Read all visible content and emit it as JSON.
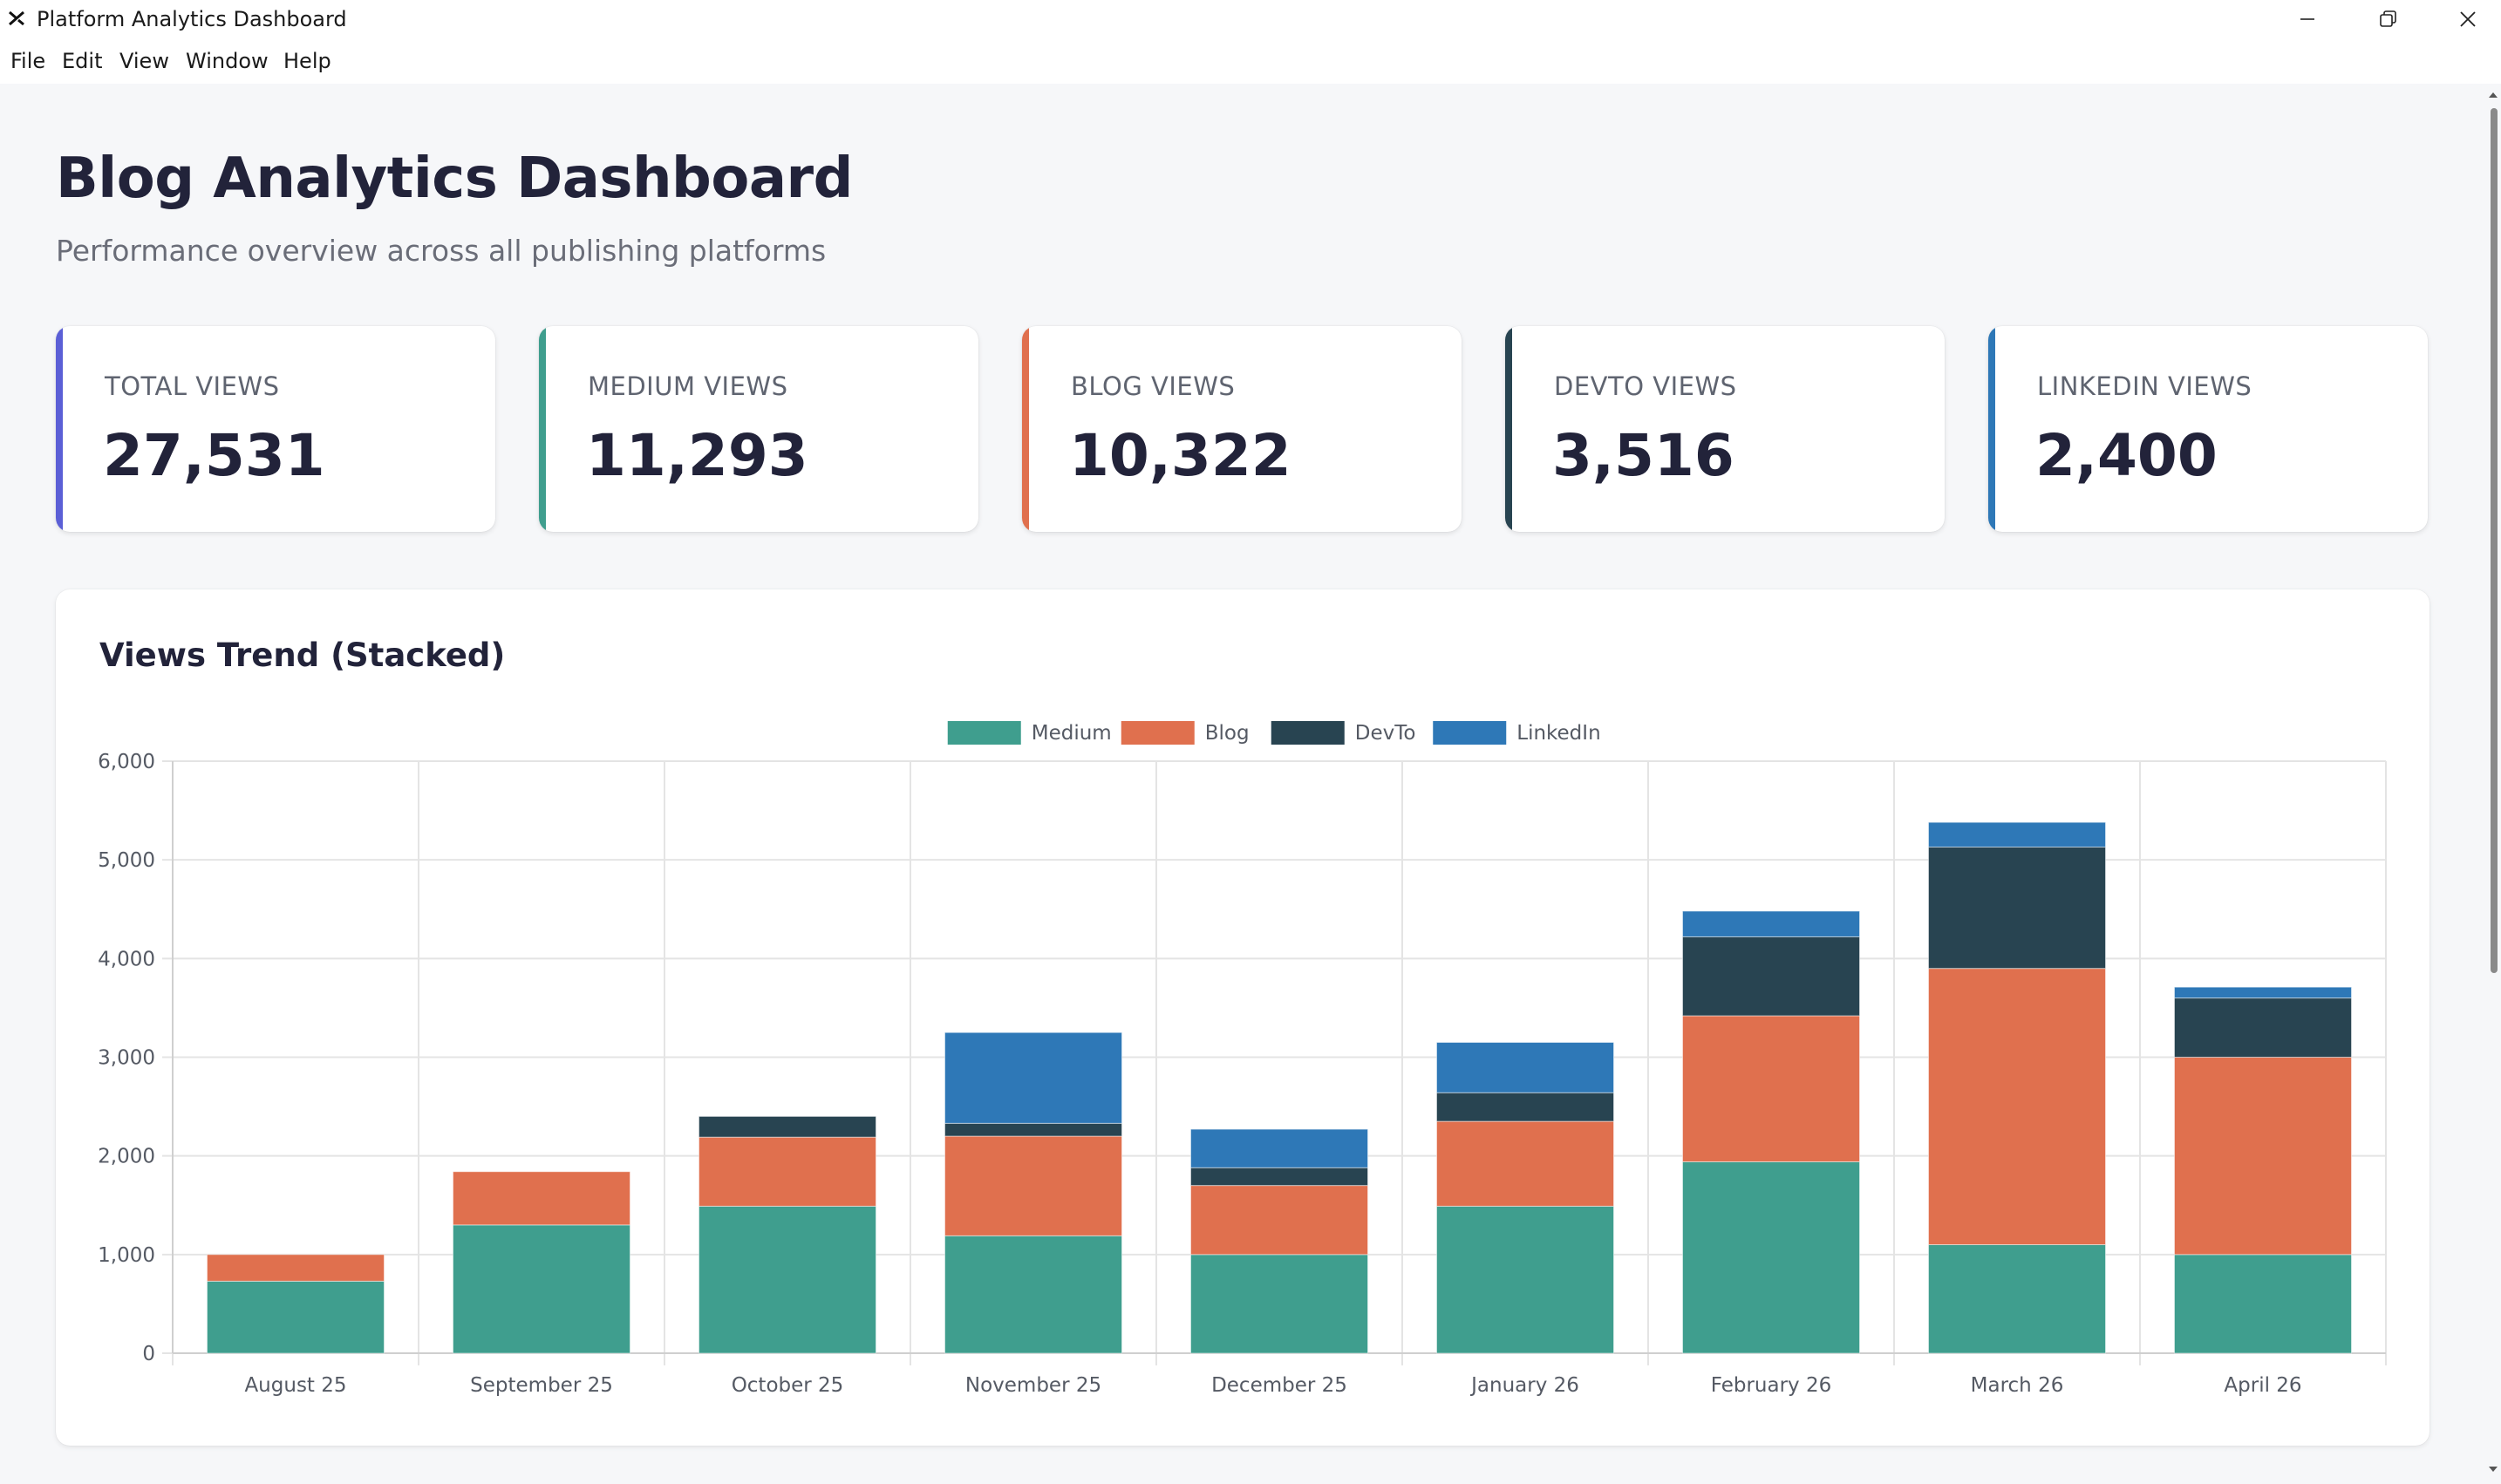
{
  "window": {
    "title": "Platform Analytics Dashboard",
    "icons": [
      "app-icon",
      "minimize-icon",
      "restore-icon",
      "close-icon"
    ]
  },
  "menu": {
    "items": [
      {
        "label": "File"
      },
      {
        "label": "Edit"
      },
      {
        "label": "View"
      },
      {
        "label": "Window"
      },
      {
        "label": "Help"
      }
    ]
  },
  "page": {
    "title": "Blog Analytics Dashboard",
    "subtitle": "Performance overview across all publishing platforms"
  },
  "cards": [
    {
      "label": "TOTAL VIEWS",
      "value": "27,531",
      "color": "#5b5fd6"
    },
    {
      "label": "MEDIUM VIEWS",
      "value": "11,293",
      "color": "#3f9e8e"
    },
    {
      "label": "BLOG VIEWS",
      "value": "10,322",
      "color": "#e0704e"
    },
    {
      "label": "DEVTO VIEWS",
      "value": "3,516",
      "color": "#284451"
    },
    {
      "label": "LINKEDIN VIEWS",
      "value": "2,400",
      "color": "#2e78b7"
    }
  ],
  "chart_panel": {
    "title": "Views Trend (Stacked)"
  },
  "chart_data": {
    "type": "bar",
    "stacked": true,
    "categories": [
      "August 25",
      "September 25",
      "October 25",
      "November 25",
      "December 25",
      "January 26",
      "February 26",
      "March 26",
      "April 26"
    ],
    "series": [
      {
        "name": "Medium",
        "color": "#3f9e8e",
        "values": [
          730,
          1300,
          1490,
          1190,
          1000,
          1490,
          1940,
          1100,
          1000
        ]
      },
      {
        "name": "Blog",
        "color": "#e0704e",
        "values": [
          270,
          540,
          700,
          1010,
          700,
          860,
          1480,
          2800,
          2000
        ]
      },
      {
        "name": "DevTo",
        "color": "#284451",
        "values": [
          0,
          0,
          210,
          130,
          180,
          290,
          800,
          1230,
          600
        ]
      },
      {
        "name": "LinkedIn",
        "color": "#2e78b7",
        "values": [
          0,
          0,
          0,
          920,
          390,
          510,
          260,
          250,
          110
        ]
      }
    ],
    "ylim": [
      0,
      6000
    ],
    "yticks": [
      "0",
      "1,000",
      "2,000",
      "3,000",
      "4,000",
      "5,000",
      "6,000"
    ],
    "legend": "top-center",
    "grid": true
  }
}
